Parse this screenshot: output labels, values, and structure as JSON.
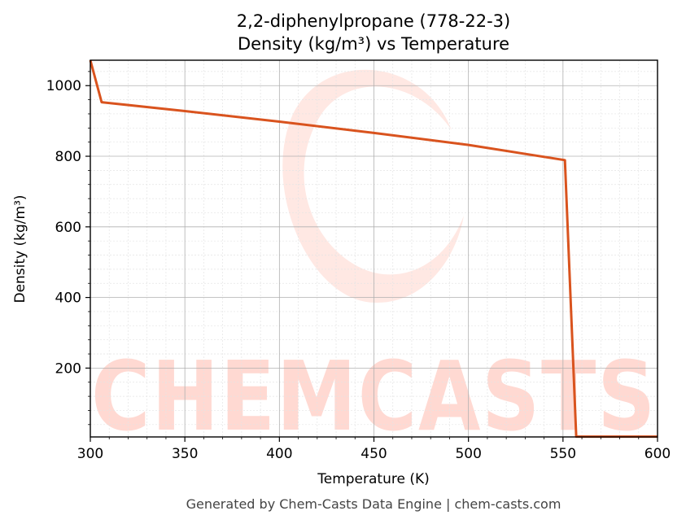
{
  "chart_data": {
    "type": "line",
    "title": "2,2-diphenylpropane (778-22-3)",
    "subtitle": "Density (kg/m³) vs Temperature",
    "xlabel": "Temperature (K)",
    "ylabel": "Density (kg/m³)",
    "xlim": [
      300,
      600
    ],
    "ylim": [
      5,
      1072
    ],
    "x_ticks": [
      300,
      350,
      400,
      450,
      500,
      550,
      600
    ],
    "y_ticks": [
      200,
      400,
      600,
      800,
      1000
    ],
    "grid": true,
    "line_color": "#d9531e",
    "series": [
      {
        "x": [
          300,
          306,
          350,
          400,
          450,
          500,
          551,
          557,
          600
        ],
        "values": [
          1072,
          953,
          928,
          898,
          866,
          832,
          789,
          6,
          6
        ]
      }
    ]
  },
  "watermark": {
    "text": "CHEMCASTS",
    "color": "#ffd9d2"
  },
  "footer": "Generated by Chem-Casts Data Engine | chem-casts.com"
}
